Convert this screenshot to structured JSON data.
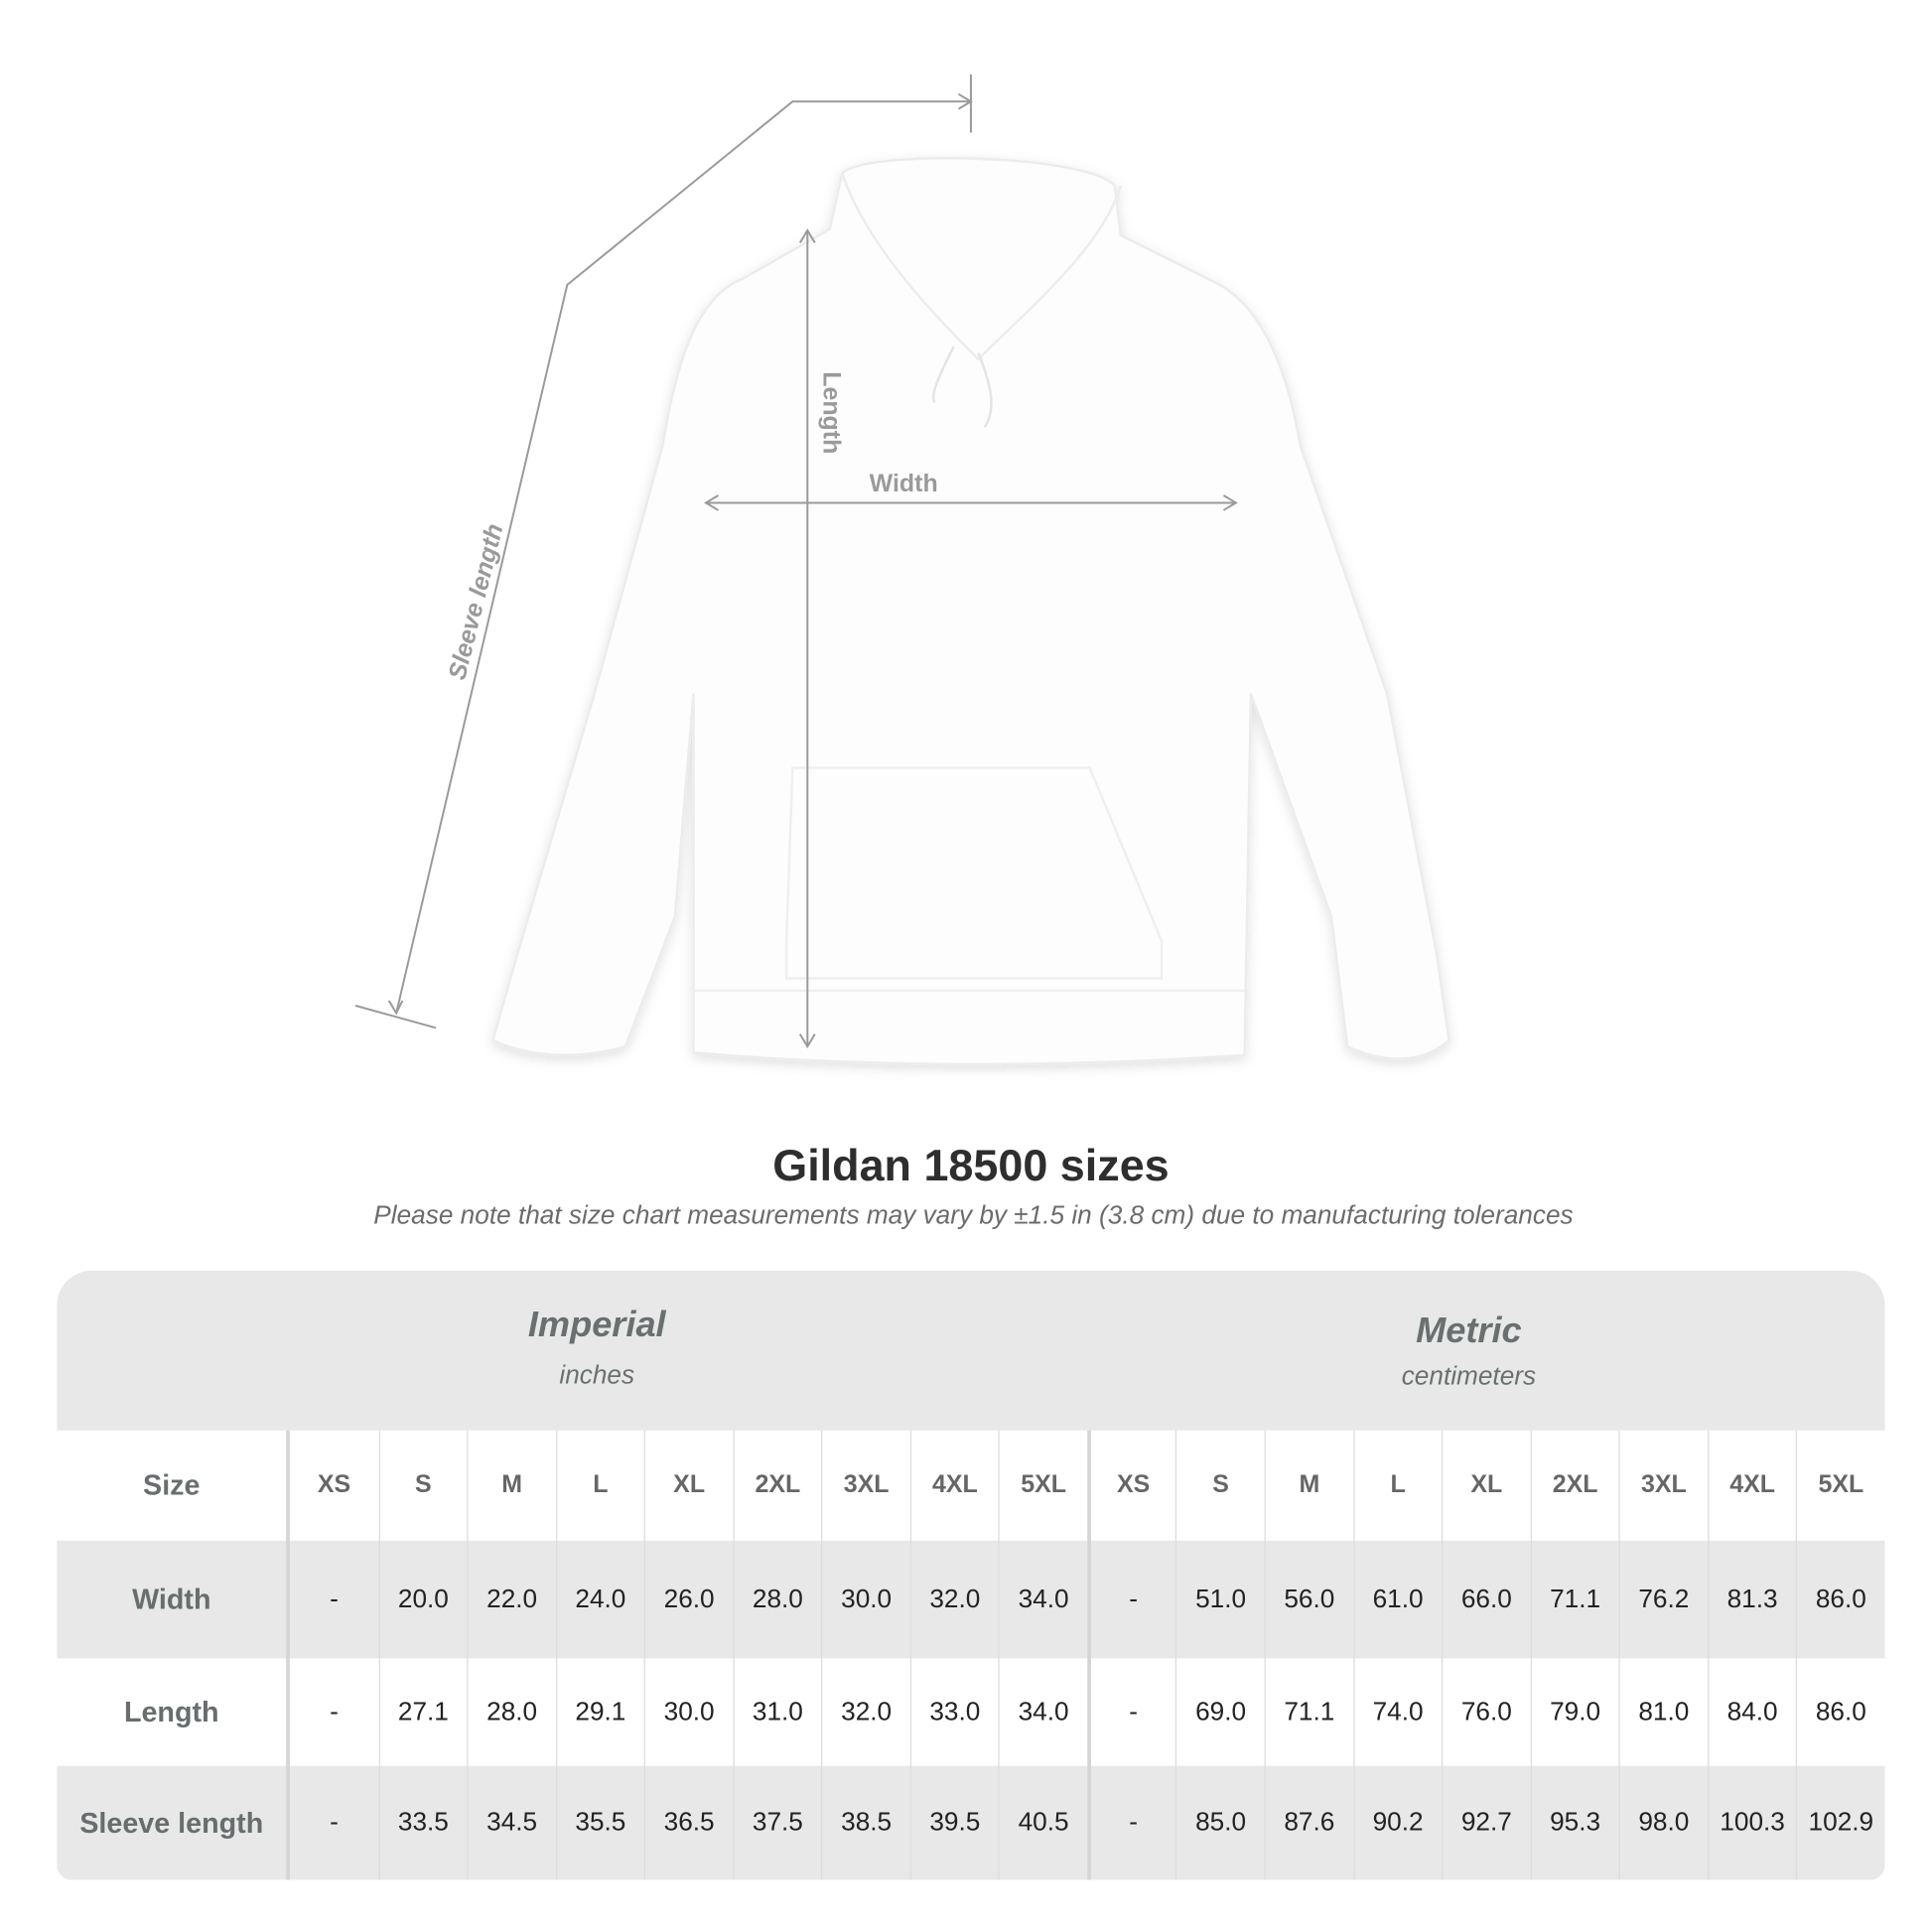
{
  "diagram": {
    "labels": {
      "length": "Length",
      "width": "Width",
      "sleeve": "Sleeve length"
    },
    "product_color": "#ffffff",
    "line_color": "#9a9a9a"
  },
  "title": "Gildan 18500 sizes",
  "note": "Please note that size chart measurements may vary by ±1.5 in (3.8 cm) due to manufacturing tolerances",
  "table": {
    "imperial": {
      "name": "Imperial",
      "unit": "inches"
    },
    "metric": {
      "name": "Metric",
      "unit": "centimeters"
    },
    "size_label": "Size",
    "sizes": [
      "XS",
      "S",
      "M",
      "L",
      "XL",
      "2XL",
      "3XL",
      "4XL",
      "5XL"
    ],
    "rows": [
      {
        "label": "Width",
        "imperial": [
          "-",
          "20.0",
          "22.0",
          "24.0",
          "26.0",
          "28.0",
          "30.0",
          "32.0",
          "34.0"
        ],
        "metric": [
          "-",
          "51.0",
          "56.0",
          "61.0",
          "66.0",
          "71.1",
          "76.2",
          "81.3",
          "86.0"
        ]
      },
      {
        "label": "Length",
        "imperial": [
          "-",
          "27.1",
          "28.0",
          "29.1",
          "30.0",
          "31.0",
          "32.0",
          "33.0",
          "34.0"
        ],
        "metric": [
          "-",
          "69.0",
          "71.1",
          "74.0",
          "76.0",
          "79.0",
          "81.0",
          "84.0",
          "86.0"
        ]
      },
      {
        "label": "Sleeve length",
        "imperial": [
          "-",
          "33.5",
          "34.5",
          "35.5",
          "36.5",
          "37.5",
          "38.5",
          "39.5",
          "40.5"
        ],
        "metric": [
          "-",
          "85.0",
          "87.6",
          "90.2",
          "92.7",
          "95.3",
          "98.0",
          "100.3",
          "102.9"
        ]
      }
    ]
  }
}
